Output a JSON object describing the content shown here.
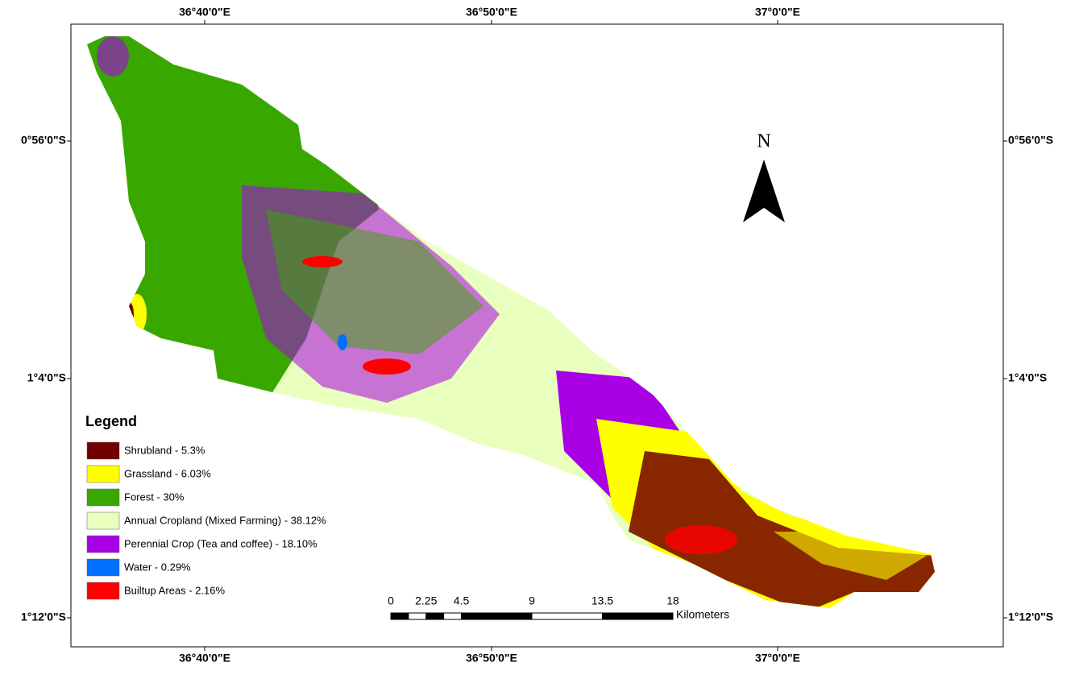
{
  "map": {
    "top_labels": [
      "36°40'0\"E",
      "36°50'0\"E",
      "37°0'0\"E"
    ],
    "bottom_labels": [
      "36°40'0\"E",
      "36°50'0\"E",
      "37°0'0\"E"
    ],
    "left_labels": [
      "0°56'0\"S",
      "1°4'0\"S",
      "1°12'0\"S"
    ],
    "right_labels": [
      "0°56'0\"S",
      "1°4'0\"S",
      "1°12'0\"S"
    ],
    "north": "N",
    "legend": {
      "title": "Legend",
      "items": [
        {
          "label": "Shrubland - 5.3%",
          "color": "#730000"
        },
        {
          "label": "Grassland - 6.03%",
          "color": "#ffff00"
        },
        {
          "label": "Forest - 30%",
          "color": "#38a800"
        },
        {
          "label": "Annual Cropland (Mixed Farming) - 38.12%",
          "color": "#e9ffbe"
        },
        {
          "label": "Perennial Crop (Tea and coffee) - 18.10%",
          "color": "#a900e6"
        },
        {
          "label": "Water - 0.29%",
          "color": "#0070ff"
        },
        {
          "label": "Builtup Areas - 2.16%",
          "color": "#ff0000"
        }
      ]
    },
    "scale_bar": {
      "ticks": [
        0,
        2.25,
        4.5,
        9,
        13.5,
        18
      ],
      "unit": "Kilometers"
    }
  }
}
